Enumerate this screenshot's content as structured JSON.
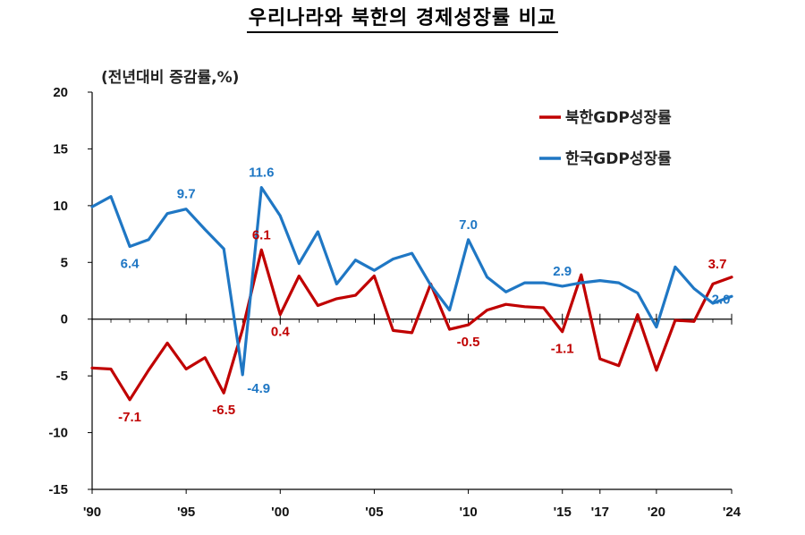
{
  "page_title": "우리나라와 북한의 경제성장률 비교",
  "chart_data": {
    "type": "line",
    "title": "우리나라와 북한의 경제성장률 비교",
    "ylabel": "(전년대비 증감률,%)",
    "xlabel": "",
    "ylim": [
      -15,
      20
    ],
    "yticks": [
      "20",
      "15",
      "10",
      "5",
      "0",
      "-5",
      "-10",
      "-15"
    ],
    "xlim": [
      1990,
      2024
    ],
    "xticks": [
      {
        "year": 1990,
        "label": "'90"
      },
      {
        "year": 1995,
        "label": "'95"
      },
      {
        "year": 2000,
        "label": "'00"
      },
      {
        "year": 2005,
        "label": "'05"
      },
      {
        "year": 2010,
        "label": "'10"
      },
      {
        "year": 2015,
        "label": "'15"
      },
      {
        "year": 2017,
        "label": "'17"
      },
      {
        "year": 2020,
        "label": "'20"
      },
      {
        "year": 2024,
        "label": "'24"
      }
    ],
    "legend_position": "top-right",
    "x": [
      1990,
      1991,
      1992,
      1993,
      1994,
      1995,
      1996,
      1997,
      1998,
      1999,
      2000,
      2001,
      2002,
      2003,
      2004,
      2005,
      2006,
      2007,
      2008,
      2009,
      2010,
      2011,
      2012,
      2013,
      2014,
      2015,
      2016,
      2017,
      2018,
      2019,
      2020,
      2021,
      2022,
      2023,
      2024
    ],
    "series": [
      {
        "name": "북한GDP성장률",
        "color": "#c00000",
        "values": [
          -4.3,
          -4.4,
          -7.1,
          -4.5,
          -2.1,
          -4.4,
          -3.4,
          -6.5,
          -0.9,
          6.1,
          0.4,
          3.8,
          1.2,
          1.8,
          2.1,
          3.8,
          -1.0,
          -1.2,
          3.1,
          -0.9,
          -0.5,
          0.8,
          1.3,
          1.1,
          1.0,
          -1.1,
          3.9,
          -3.5,
          -4.1,
          0.4,
          -4.5,
          -0.1,
          -0.2,
          3.1,
          3.7
        ],
        "labels": [
          {
            "year": 1992,
            "text": "-7.1",
            "pos": "below"
          },
          {
            "year": 1997,
            "text": "-6.5",
            "pos": "below"
          },
          {
            "year": 1999,
            "text": "6.1",
            "pos": "above"
          },
          {
            "year": 2000,
            "text": "0.4",
            "pos": "below"
          },
          {
            "year": 2010,
            "text": "-0.5",
            "pos": "below"
          },
          {
            "year": 2015,
            "text": "-1.1",
            "pos": "below"
          },
          {
            "year": 2024,
            "text": "3.7",
            "pos": "above-left"
          }
        ]
      },
      {
        "name": "한국GDP성장률",
        "color": "#1f77c4",
        "values": [
          9.9,
          10.8,
          6.4,
          7.0,
          9.3,
          9.7,
          7.9,
          6.2,
          -4.9,
          11.6,
          9.1,
          4.9,
          7.7,
          3.1,
          5.2,
          4.3,
          5.3,
          5.8,
          3.0,
          0.8,
          7.0,
          3.7,
          2.4,
          3.2,
          3.2,
          2.9,
          3.2,
          3.4,
          3.2,
          2.3,
          -0.7,
          4.6,
          2.7,
          1.4,
          2.0
        ],
        "labels": [
          {
            "year": 1992,
            "text": "6.4",
            "pos": "below"
          },
          {
            "year": 1995,
            "text": "9.7",
            "pos": "above"
          },
          {
            "year": 1998,
            "text": "-4.9",
            "pos": "below-right"
          },
          {
            "year": 1999,
            "text": "11.6",
            "pos": "above"
          },
          {
            "year": 2010,
            "text": "7.0",
            "pos": "above"
          },
          {
            "year": 2015,
            "text": "2.9",
            "pos": "above"
          },
          {
            "year": 2024,
            "text": "2.0",
            "pos": "below-left"
          }
        ]
      }
    ]
  }
}
